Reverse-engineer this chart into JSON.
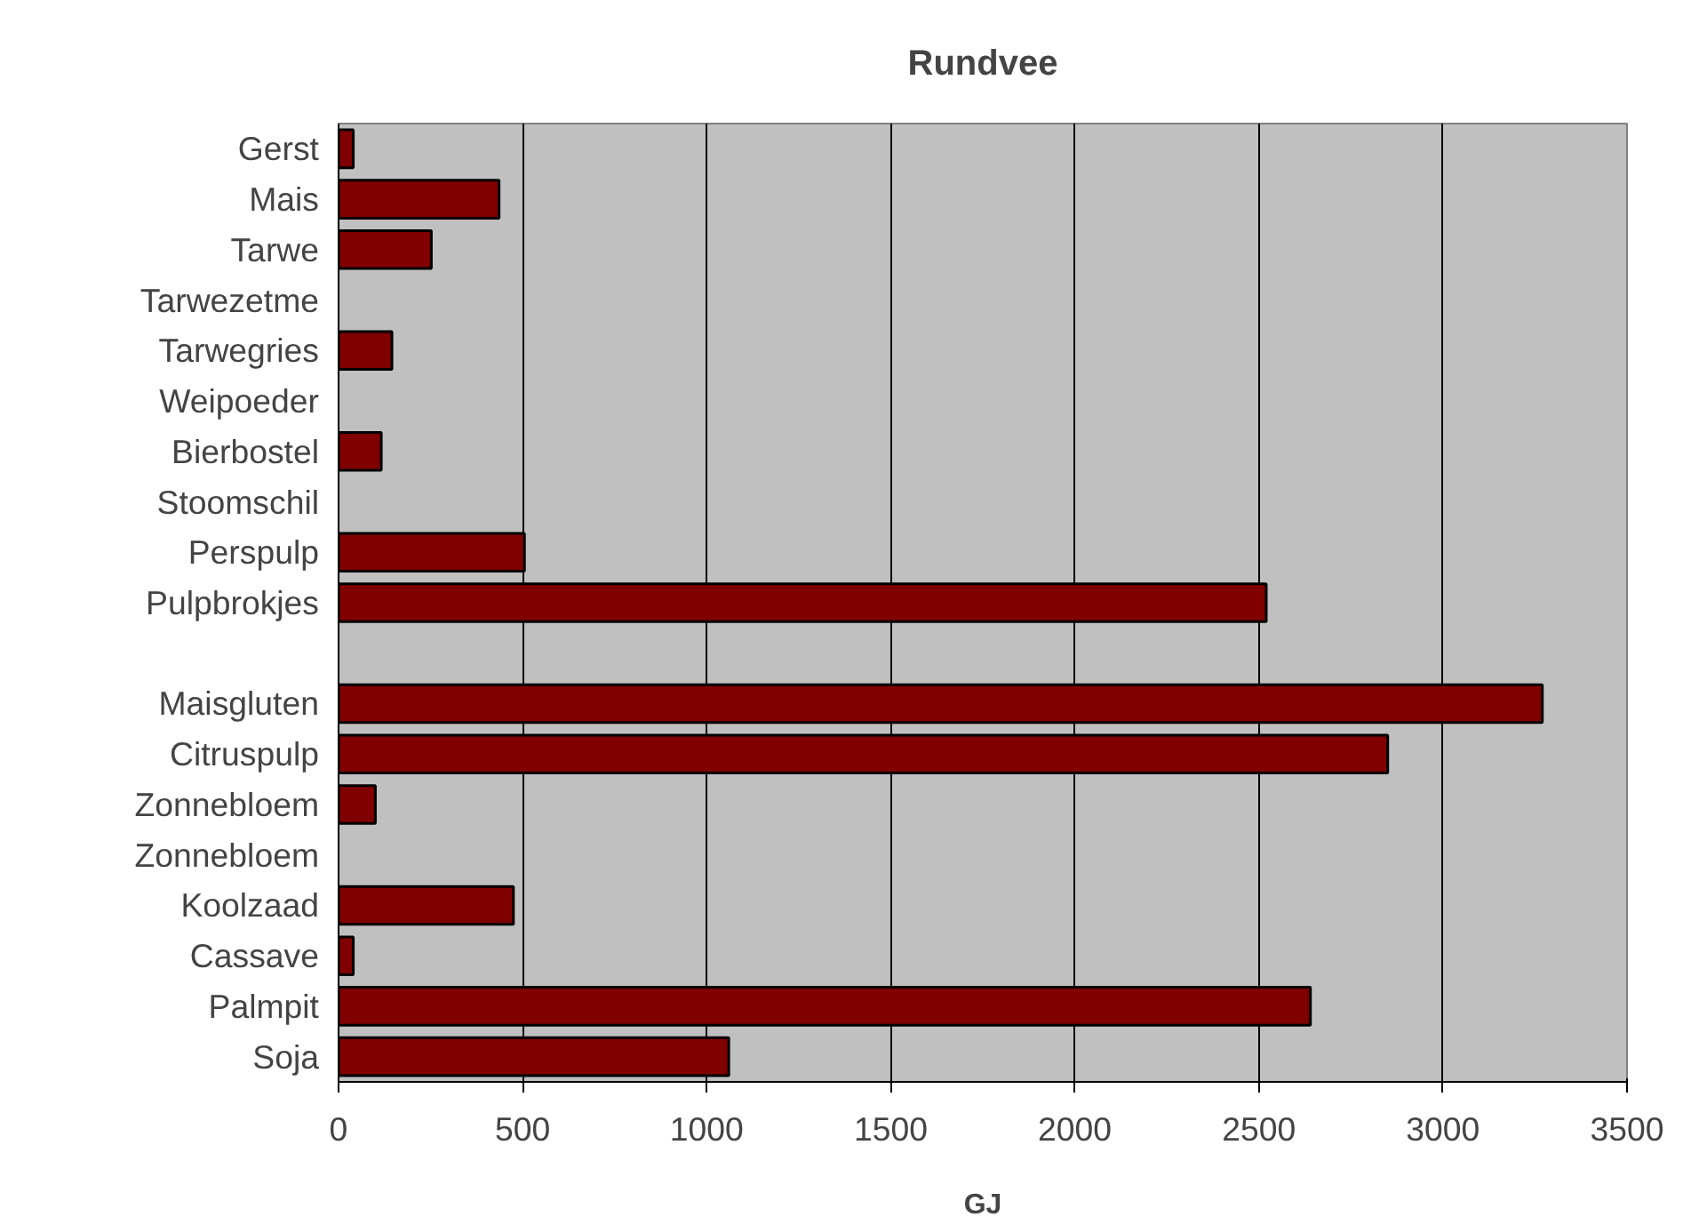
{
  "chart_data": {
    "type": "bar",
    "orientation": "horizontal",
    "title": "Rundvee",
    "xlabel": "GJ",
    "categories": [
      "Gerst",
      "Mais",
      "Tarwe",
      "Tarwezetme",
      "Tarwegries",
      "Weipoeder",
      "Bierbostel",
      "Stoomschil",
      "Perspulp",
      "Pulpbrokjes",
      null,
      "Maisgluten",
      "Citruspulp",
      "Zonnebloem",
      "Zonnebloem",
      "Koolzaad",
      "Cassave",
      "Palmpit",
      "Soja"
    ],
    "values": [
      40,
      436,
      252,
      null,
      145,
      null,
      116,
      null,
      505,
      2520,
      null,
      3270,
      2850,
      100,
      null,
      475,
      40,
      2640,
      1060
    ],
    "color": "#800000",
    "xlim": [
      0,
      3500
    ],
    "xticks": [
      0,
      500,
      1000,
      1500,
      2000,
      2500,
      3000,
      3500
    ],
    "grid": "x"
  }
}
